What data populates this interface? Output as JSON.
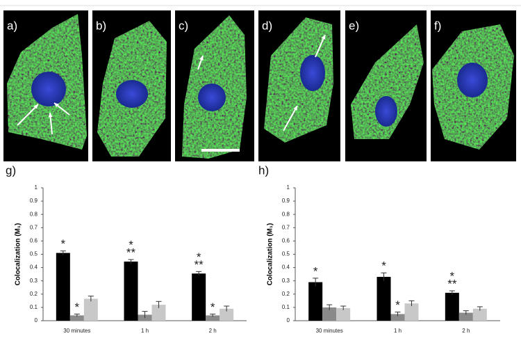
{
  "panels": [
    "a)",
    "b)",
    "c)",
    "d)",
    "e)",
    "f)"
  ],
  "chart_data": [
    {
      "type": "bar",
      "title": "g)",
      "y_label": "Colocalization (M₁)",
      "categories": [
        "30 minutes",
        "1 h",
        "2 h"
      ],
      "ylim": [
        0,
        1
      ],
      "yticks": [
        0,
        0.1,
        0.2,
        0.3,
        0.4,
        0.5,
        0.6,
        0.7,
        0.8,
        0.9,
        1
      ],
      "series": [
        {
          "color": "#000000",
          "values": [
            0.51,
            0.445,
            0.355
          ],
          "errors": [
            0.015,
            0.015,
            0.015
          ],
          "significance": [
            [
              "*"
            ],
            [
              "*",
              "**"
            ],
            [
              "*",
              "**"
            ]
          ]
        },
        {
          "color": "#8a8a8a",
          "values": [
            0.04,
            0.045,
            0.04
          ],
          "errors": [
            0.01,
            0.025,
            0.01
          ],
          "significance": [
            [
              "*"
            ],
            null,
            [
              "*"
            ]
          ]
        },
        {
          "color": "#c8c8c8",
          "values": [
            0.165,
            0.12,
            0.09
          ],
          "errors": [
            0.02,
            0.025,
            0.02
          ],
          "significance": [
            null,
            null,
            null
          ]
        }
      ]
    },
    {
      "type": "bar",
      "title": "h)",
      "y_label": "Colocalization (M₁)",
      "categories": [
        "30 minutes",
        "1 h",
        "2 h"
      ],
      "ylim": [
        0,
        1
      ],
      "yticks": [
        0,
        0.1,
        0.2,
        0.3,
        0.4,
        0.5,
        0.6,
        0.7,
        0.8,
        0.9,
        1
      ],
      "series": [
        {
          "color": "#000000",
          "values": [
            0.29,
            0.33,
            0.21
          ],
          "errors": [
            0.03,
            0.03,
            0.015
          ],
          "significance": [
            [
              "*"
            ],
            [
              "*"
            ],
            [
              "*",
              "**"
            ]
          ]
        },
        {
          "color": "#8a8a8a",
          "values": [
            0.1,
            0.05,
            0.06
          ],
          "errors": [
            0.02,
            0.015,
            0.015
          ],
          "significance": [
            null,
            [
              "*"
            ],
            null
          ]
        },
        {
          "color": "#c8c8c8",
          "values": [
            0.095,
            0.13,
            0.09
          ],
          "errors": [
            0.015,
            0.02,
            0.015
          ],
          "significance": [
            null,
            null,
            null
          ]
        }
      ]
    }
  ]
}
